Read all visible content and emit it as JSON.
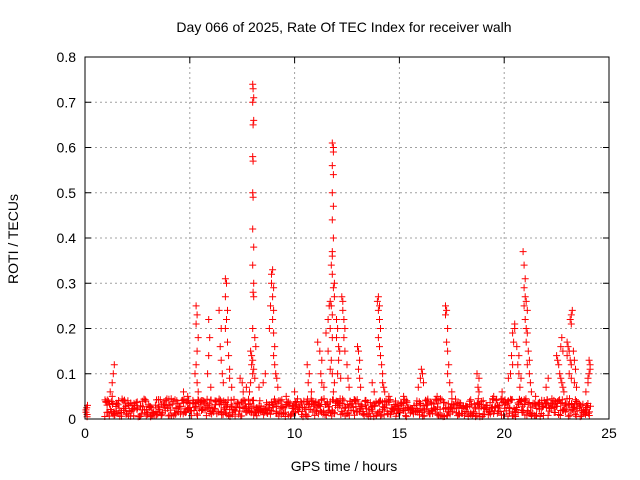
{
  "chart_data": {
    "type": "scatter",
    "title": "Day 066 of 2025, Rate Of TEC Index for receiver walh",
    "xlabel": "GPS time / hours",
    "ylabel": "ROTI / TECUs",
    "xlim": [
      0,
      25
    ],
    "ylim": [
      0,
      0.8
    ],
    "xticks": [
      0,
      5,
      10,
      15,
      20,
      25
    ],
    "yticks": [
      0,
      0.1,
      0.2,
      0.3,
      0.4,
      0.5,
      0.6,
      0.7,
      0.8
    ],
    "xtick_labels": [
      "0",
      "5",
      "10",
      "15",
      "20",
      "25"
    ],
    "ytick_labels": [
      "0",
      "0.1",
      "0.2",
      "0.3",
      "0.4",
      "0.5",
      "0.6",
      "0.7",
      "0.8"
    ],
    "grid": true,
    "marker": "+",
    "color": "#ff0000",
    "background_level": {
      "x_range": [
        0.9,
        24.1
      ],
      "y_range": [
        0.005,
        0.045
      ]
    },
    "series": [
      {
        "name": "ROTI",
        "points": [
          [
            0.05,
            0.02
          ],
          [
            0.05,
            0.015
          ],
          [
            0.08,
            0.025
          ],
          [
            0.1,
            0.01
          ],
          [
            0.12,
            0.03
          ],
          [
            0.1,
            0.005
          ],
          [
            1.2,
            0.06
          ],
          [
            1.3,
            0.08
          ],
          [
            1.35,
            0.1
          ],
          [
            1.4,
            0.12
          ],
          [
            1.3,
            0.05
          ],
          [
            4.7,
            0.06
          ],
          [
            4.9,
            0.05
          ],
          [
            5.3,
            0.25
          ],
          [
            5.35,
            0.23
          ],
          [
            5.3,
            0.21
          ],
          [
            5.4,
            0.18
          ],
          [
            5.35,
            0.15
          ],
          [
            5.3,
            0.12
          ],
          [
            5.25,
            0.1
          ],
          [
            5.35,
            0.08
          ],
          [
            5.4,
            0.06
          ],
          [
            5.9,
            0.22
          ],
          [
            5.95,
            0.18
          ],
          [
            5.9,
            0.14
          ],
          [
            5.85,
            0.1
          ],
          [
            6.0,
            0.07
          ],
          [
            6.4,
            0.24
          ],
          [
            6.5,
            0.2
          ],
          [
            6.45,
            0.16
          ],
          [
            6.5,
            0.13
          ],
          [
            6.55,
            0.1
          ],
          [
            6.6,
            0.08
          ],
          [
            6.7,
            0.31
          ],
          [
            6.75,
            0.3
          ],
          [
            6.7,
            0.27
          ],
          [
            6.8,
            0.24
          ],
          [
            6.75,
            0.22
          ],
          [
            6.7,
            0.2
          ],
          [
            6.8,
            0.17
          ],
          [
            6.85,
            0.14
          ],
          [
            6.9,
            0.11
          ],
          [
            6.9,
            0.09
          ],
          [
            7.0,
            0.07
          ],
          [
            7.4,
            0.09
          ],
          [
            7.5,
            0.08
          ],
          [
            7.55,
            0.06
          ],
          [
            7.7,
            0.07
          ],
          [
            7.9,
            0.15
          ],
          [
            7.95,
            0.14
          ],
          [
            8.0,
            0.13
          ],
          [
            7.95,
            0.12
          ],
          [
            8.05,
            0.11
          ],
          [
            8.0,
            0.1
          ],
          [
            7.9,
            0.08
          ],
          [
            8.1,
            0.09
          ],
          [
            7.85,
            0.06
          ],
          [
            8.0,
            0.74
          ],
          [
            8.02,
            0.73
          ],
          [
            8.05,
            0.71
          ],
          [
            8.0,
            0.7
          ],
          [
            8.05,
            0.66
          ],
          [
            8.02,
            0.65
          ],
          [
            8.0,
            0.58
          ],
          [
            8.02,
            0.57
          ],
          [
            8.0,
            0.5
          ],
          [
            8.02,
            0.49
          ],
          [
            8.0,
            0.42
          ],
          [
            8.05,
            0.38
          ],
          [
            8.0,
            0.34
          ],
          [
            8.05,
            0.3
          ],
          [
            8.02,
            0.28
          ],
          [
            8.05,
            0.27
          ],
          [
            8.0,
            0.2
          ],
          [
            8.1,
            0.18
          ],
          [
            8.15,
            0.16
          ],
          [
            8.3,
            0.07
          ],
          [
            8.5,
            0.08
          ],
          [
            8.6,
            0.1
          ],
          [
            8.8,
            0.2
          ],
          [
            8.85,
            0.25
          ],
          [
            8.9,
            0.3
          ],
          [
            8.95,
            0.33
          ],
          [
            8.9,
            0.32
          ],
          [
            9.0,
            0.29
          ],
          [
            8.95,
            0.27
          ],
          [
            9.0,
            0.24
          ],
          [
            8.95,
            0.22
          ],
          [
            9.0,
            0.19
          ],
          [
            9.05,
            0.16
          ],
          [
            9.0,
            0.14
          ],
          [
            9.05,
            0.12
          ],
          [
            9.1,
            0.1
          ],
          [
            9.15,
            0.09
          ],
          [
            9.2,
            0.07
          ],
          [
            9.6,
            0.05
          ],
          [
            10.0,
            0.06
          ],
          [
            10.6,
            0.12
          ],
          [
            10.7,
            0.1
          ],
          [
            10.65,
            0.08
          ],
          [
            10.8,
            0.06
          ],
          [
            11.1,
            0.17
          ],
          [
            11.2,
            0.15
          ],
          [
            11.3,
            0.13
          ],
          [
            11.25,
            0.1
          ],
          [
            11.3,
            0.08
          ],
          [
            11.4,
            0.07
          ],
          [
            11.5,
            0.19
          ],
          [
            11.6,
            0.22
          ],
          [
            11.65,
            0.25
          ],
          [
            11.7,
            0.26
          ],
          [
            11.75,
            0.25
          ],
          [
            11.8,
            0.23
          ],
          [
            11.7,
            0.2
          ],
          [
            11.8,
            0.18
          ],
          [
            11.6,
            0.15
          ],
          [
            11.75,
            0.13
          ],
          [
            11.7,
            0.11
          ],
          [
            11.8,
            0.1
          ],
          [
            11.9,
            0.08
          ],
          [
            11.85,
            0.06
          ],
          [
            11.8,
            0.61
          ],
          [
            11.85,
            0.6
          ],
          [
            11.85,
            0.59
          ],
          [
            11.8,
            0.56
          ],
          [
            11.85,
            0.54
          ],
          [
            11.8,
            0.5
          ],
          [
            11.85,
            0.47
          ],
          [
            11.8,
            0.44
          ],
          [
            11.85,
            0.4
          ],
          [
            11.8,
            0.37
          ],
          [
            11.8,
            0.36
          ],
          [
            11.75,
            0.34
          ],
          [
            11.8,
            0.32
          ],
          [
            11.9,
            0.3
          ],
          [
            11.85,
            0.29
          ],
          [
            11.9,
            0.27
          ],
          [
            12.0,
            0.22
          ],
          [
            12.05,
            0.2
          ],
          [
            12.0,
            0.18
          ],
          [
            12.1,
            0.16
          ],
          [
            12.15,
            0.15
          ],
          [
            12.1,
            0.13
          ],
          [
            12.05,
            0.1
          ],
          [
            12.2,
            0.09
          ],
          [
            12.25,
            0.27
          ],
          [
            12.3,
            0.26
          ],
          [
            12.3,
            0.24
          ],
          [
            12.35,
            0.22
          ],
          [
            12.4,
            0.2
          ],
          [
            12.35,
            0.18
          ],
          [
            12.4,
            0.15
          ],
          [
            12.5,
            0.12
          ],
          [
            12.55,
            0.09
          ],
          [
            12.6,
            0.07
          ],
          [
            13.0,
            0.16
          ],
          [
            13.05,
            0.15
          ],
          [
            13.1,
            0.13
          ],
          [
            13.05,
            0.11
          ],
          [
            13.1,
            0.09
          ],
          [
            13.15,
            0.07
          ],
          [
            13.7,
            0.08
          ],
          [
            13.8,
            0.06
          ],
          [
            13.95,
            0.26
          ],
          [
            14.0,
            0.27
          ],
          [
            14.05,
            0.25
          ],
          [
            14.0,
            0.24
          ],
          [
            14.05,
            0.22
          ],
          [
            14.1,
            0.2
          ],
          [
            14.0,
            0.18
          ],
          [
            14.05,
            0.16
          ],
          [
            14.1,
            0.14
          ],
          [
            14.15,
            0.12
          ],
          [
            14.2,
            0.1
          ],
          [
            14.2,
            0.08
          ],
          [
            14.25,
            0.07
          ],
          [
            14.3,
            0.06
          ],
          [
            14.5,
            0.05
          ],
          [
            15.2,
            0.05
          ],
          [
            15.9,
            0.07
          ],
          [
            16.0,
            0.09
          ],
          [
            16.05,
            0.11
          ],
          [
            16.1,
            0.1
          ],
          [
            16.15,
            0.08
          ],
          [
            16.8,
            0.05
          ],
          [
            17.2,
            0.25
          ],
          [
            17.25,
            0.24
          ],
          [
            17.2,
            0.23
          ],
          [
            17.3,
            0.2
          ],
          [
            17.25,
            0.17
          ],
          [
            17.3,
            0.15
          ],
          [
            17.35,
            0.12
          ],
          [
            17.3,
            0.1
          ],
          [
            17.4,
            0.08
          ],
          [
            17.5,
            0.06
          ],
          [
            18.7,
            0.1
          ],
          [
            18.8,
            0.09
          ],
          [
            18.75,
            0.07
          ],
          [
            18.8,
            0.06
          ],
          [
            19.5,
            0.05
          ],
          [
            19.9,
            0.06
          ],
          [
            20.2,
            0.09
          ],
          [
            20.3,
            0.1
          ],
          [
            20.4,
            0.12
          ],
          [
            20.35,
            0.14
          ],
          [
            20.45,
            0.17
          ],
          [
            20.4,
            0.19
          ],
          [
            20.5,
            0.21
          ],
          [
            20.5,
            0.2
          ],
          [
            20.6,
            0.16
          ],
          [
            20.7,
            0.14
          ],
          [
            20.65,
            0.12
          ],
          [
            20.7,
            0.1
          ],
          [
            20.8,
            0.09
          ],
          [
            20.75,
            0.07
          ],
          [
            20.9,
            0.37
          ],
          [
            20.95,
            0.34
          ],
          [
            21.0,
            0.31
          ],
          [
            20.95,
            0.29
          ],
          [
            21.0,
            0.27
          ],
          [
            21.05,
            0.26
          ],
          [
            20.95,
            0.25
          ],
          [
            21.1,
            0.24
          ],
          [
            21.0,
            0.22
          ],
          [
            21.05,
            0.2
          ],
          [
            21.1,
            0.19
          ],
          [
            21.05,
            0.17
          ],
          [
            21.15,
            0.15
          ],
          [
            21.2,
            0.13
          ],
          [
            21.1,
            0.12
          ],
          [
            21.2,
            0.1
          ],
          [
            21.25,
            0.08
          ],
          [
            21.3,
            0.06
          ],
          [
            21.5,
            0.05
          ],
          [
            22.0,
            0.07
          ],
          [
            22.1,
            0.09
          ],
          [
            22.5,
            0.14
          ],
          [
            22.55,
            0.13
          ],
          [
            22.6,
            0.12
          ],
          [
            22.7,
            0.16
          ],
          [
            22.75,
            0.18
          ],
          [
            22.8,
            0.15
          ],
          [
            22.65,
            0.1
          ],
          [
            22.7,
            0.09
          ],
          [
            22.75,
            0.08
          ],
          [
            22.8,
            0.07
          ],
          [
            22.85,
            0.06
          ],
          [
            23.0,
            0.17
          ],
          [
            23.05,
            0.16
          ],
          [
            23.1,
            0.15
          ],
          [
            23.0,
            0.14
          ],
          [
            23.15,
            0.13
          ],
          [
            23.2,
            0.12
          ],
          [
            23.1,
            0.1
          ],
          [
            23.2,
            0.09
          ],
          [
            23.15,
            0.22
          ],
          [
            23.2,
            0.23
          ],
          [
            23.25,
            0.24
          ],
          [
            23.2,
            0.21
          ],
          [
            23.3,
            0.15
          ],
          [
            23.35,
            0.13
          ],
          [
            23.4,
            0.11
          ],
          [
            23.35,
            0.08
          ],
          [
            23.45,
            0.07
          ],
          [
            23.9,
            0.06
          ],
          [
            24.0,
            0.08
          ],
          [
            24.05,
            0.1
          ],
          [
            24.1,
            0.12
          ],
          [
            24.05,
            0.13
          ],
          [
            24.1,
            0.11
          ],
          [
            24.0,
            0.09
          ]
        ]
      }
    ]
  }
}
